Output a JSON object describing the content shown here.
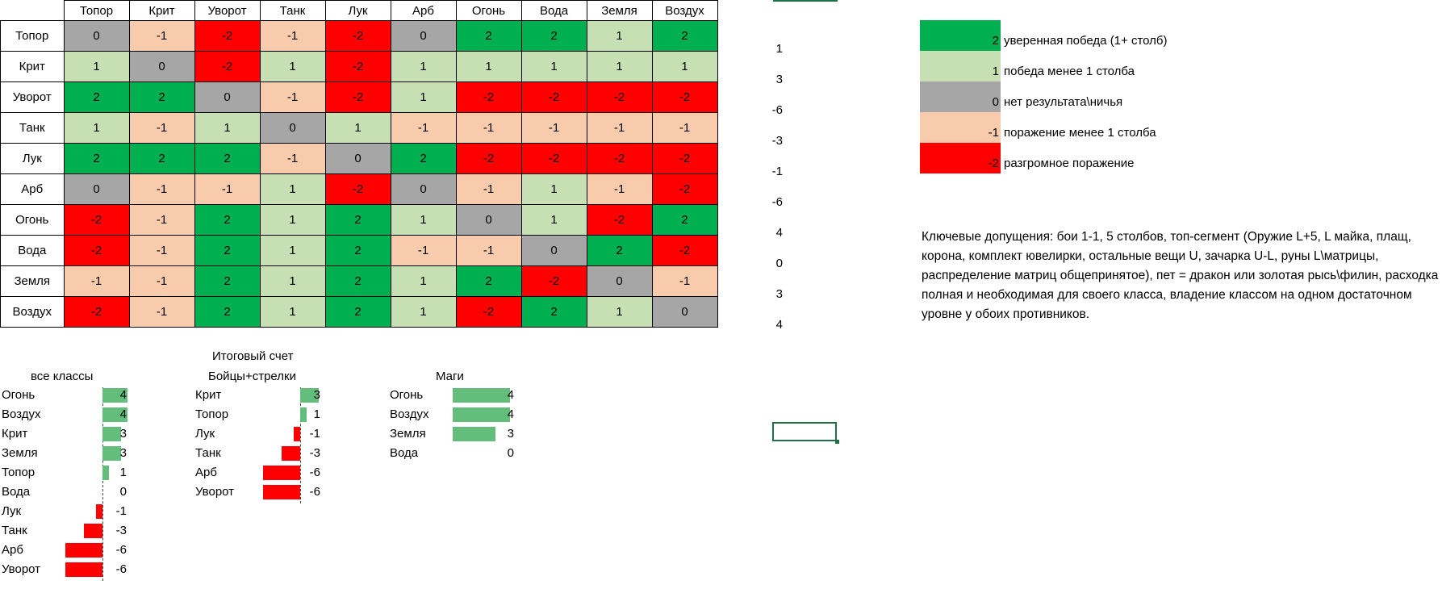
{
  "colors": {
    "2": "#00b050",
    "1": "#c6e0b4",
    "0": "#a6a6a6",
    "-1": "#f8cbad",
    "-2": "#ff0000",
    "bar_positive": "#63be7b",
    "bar_negative": "#ff0000",
    "selection": "#1e7145"
  },
  "matrix": {
    "columns": [
      "Топор",
      "Крит",
      "Уворот",
      "Танк",
      "Лук",
      "Арб",
      "Огонь",
      "Вода",
      "Земля",
      "Воздух"
    ],
    "rows": [
      {
        "name": "Топор",
        "values": [
          "0",
          "-1",
          "-2",
          "-1",
          "-2",
          "0",
          "2",
          "2",
          "1",
          "2"
        ],
        "sum": "1"
      },
      {
        "name": "Крит",
        "values": [
          "1",
          "0",
          "-2",
          "1",
          "-2",
          "1",
          "1",
          "1",
          "1",
          "1"
        ],
        "sum": "3"
      },
      {
        "name": "Уворот",
        "values": [
          "2",
          "2",
          "0",
          "-1",
          "-2",
          "1",
          "-2",
          "-2",
          "-2",
          "-2"
        ],
        "sum": "-6"
      },
      {
        "name": "Танк",
        "values": [
          "1",
          "-1",
          "1",
          "0",
          "1",
          "-1",
          "-1",
          "-1",
          "-1",
          "-1"
        ],
        "sum": "-3"
      },
      {
        "name": "Лук",
        "values": [
          "2",
          "2",
          "2",
          "-1",
          "0",
          "2",
          "-2",
          "-2",
          "-2",
          "-2"
        ],
        "sum": "-1"
      },
      {
        "name": "Арб",
        "values": [
          "0",
          "-1",
          "-1",
          "1",
          "-2",
          "0",
          "-1",
          "1",
          "-1",
          "-2"
        ],
        "sum": "-6"
      },
      {
        "name": "Огонь",
        "values": [
          "-2",
          "-1",
          "2",
          "1",
          "2",
          "1",
          "0",
          "1",
          "-2",
          "2"
        ],
        "sum": "4"
      },
      {
        "name": "Вода",
        "values": [
          "-2",
          "-1",
          "2",
          "1",
          "2",
          "-1",
          "-1",
          "0",
          "2",
          "-2"
        ],
        "sum": "0"
      },
      {
        "name": "Земля",
        "values": [
          "-1",
          "-1",
          "2",
          "1",
          "2",
          "1",
          "2",
          "-2",
          "0",
          "-1"
        ],
        "sum": "3"
      },
      {
        "name": "Воздух",
        "values": [
          "-2",
          "-1",
          "2",
          "1",
          "2",
          "1",
          "-2",
          "2",
          "1",
          "0"
        ],
        "sum": "4"
      }
    ]
  },
  "legend": [
    {
      "value": "2",
      "text": "уверенная победа (1+ столб)"
    },
    {
      "value": "1",
      "text": "победа менее 1 столба"
    },
    {
      "value": "0",
      "text": "нет результата\\ничья"
    },
    {
      "value": "-1",
      "text": "поражение менее 1 столба"
    },
    {
      "value": "-2",
      "text": "разгромное поражение"
    }
  ],
  "note": "Ключевые допущения: бои 1-1, 5 столбов, топ-сегмент (Оружие L+5, L майка, плащ, корона, комплект ювелирки, остальные вещи U, зачарка U-L, руны L\\матрицы, распределение матриц общепринятое), пет = дракон или золотая рысь\\филин, расходка полная и необходимая для своего класса, владение классом на одном достаточном уровне у обоих противников.",
  "summary_title": "Итоговый счет",
  "groups": [
    {
      "title": "все классы",
      "items": [
        {
          "name": "Огонь",
          "value": 4
        },
        {
          "name": "Воздух",
          "value": 4
        },
        {
          "name": "Крит",
          "value": 3
        },
        {
          "name": "Земля",
          "value": 3
        },
        {
          "name": "Топор",
          "value": 1
        },
        {
          "name": "Вода",
          "value": 0
        },
        {
          "name": "Лук",
          "value": -1
        },
        {
          "name": "Танк",
          "value": -3
        },
        {
          "name": "Арб",
          "value": -6
        },
        {
          "name": "Уворот",
          "value": -6
        }
      ]
    },
    {
      "title": "Бойцы+стрелки",
      "items": [
        {
          "name": "Крит",
          "value": 3
        },
        {
          "name": "Топор",
          "value": 1
        },
        {
          "name": "Лук",
          "value": -1
        },
        {
          "name": "Танк",
          "value": -3
        },
        {
          "name": "Арб",
          "value": -6
        },
        {
          "name": "Уворот",
          "value": -6
        }
      ]
    },
    {
      "title": "Маги",
      "items": [
        {
          "name": "Огонь",
          "value": 4
        },
        {
          "name": "Воздух",
          "value": 4
        },
        {
          "name": "Земля",
          "value": 3
        },
        {
          "name": "Вода",
          "value": 0
        }
      ]
    }
  ]
}
